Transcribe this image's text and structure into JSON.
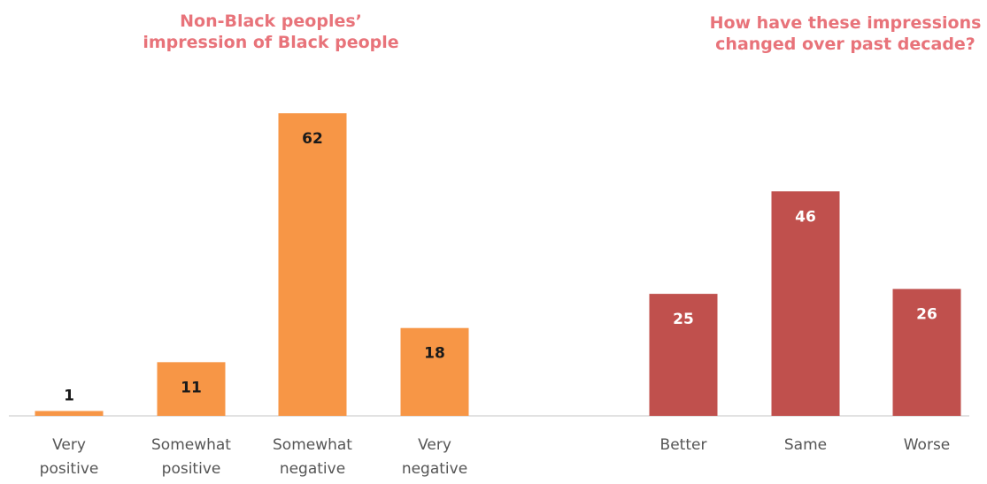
{
  "colors": {
    "title": "#E8737A",
    "orange_bar": "#F79646",
    "red_bar": "#C0504D",
    "axis": "#D9D9D9",
    "tick_text": "#555555",
    "value_text_dark": "#1a1a1a",
    "value_text_light": "#ffffff"
  },
  "chart_data": [
    {
      "type": "bar",
      "title": "Non-Black peoples’ impression of Black people",
      "title_lines": [
        "Non-Black peoples’",
        "impression of Black people"
      ],
      "categories": [
        "Very positive",
        "Somewhat positive",
        "Somewhat negative",
        "Very negative"
      ],
      "category_lines": [
        [
          "Very",
          "positive"
        ],
        [
          "Somewhat",
          "positive"
        ],
        [
          "Somewhat",
          "negative"
        ],
        [
          "Very",
          "negative"
        ]
      ],
      "values": [
        1,
        11,
        62,
        18
      ],
      "color": "#F79646",
      "label_color": "#1a1a1a",
      "ylim": [
        0,
        62
      ],
      "grid": false,
      "xlabel": "",
      "ylabel": ""
    },
    {
      "type": "bar",
      "title": "How have these impressions changed over past decade?",
      "title_lines": [
        "How have these impressions",
        "changed over past decade?"
      ],
      "categories": [
        "Better",
        "Same",
        "Worse"
      ],
      "category_lines": [
        [
          "Better"
        ],
        [
          "Same"
        ],
        [
          "Worse"
        ]
      ],
      "values": [
        25,
        46,
        26
      ],
      "color": "#C0504D",
      "label_color": "#ffffff",
      "ylim": [
        0,
        62
      ],
      "grid": false,
      "xlabel": "",
      "ylabel": ""
    }
  ]
}
